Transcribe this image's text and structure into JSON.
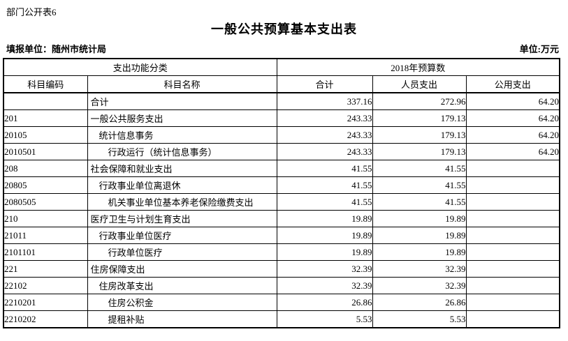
{
  "header": {
    "doc_label": "部门公开表6",
    "title": "一般公共预算基本支出表",
    "reporting_unit": "填报单位：随州市统计局",
    "unit_label": "单位:万元"
  },
  "table": {
    "group_headers": [
      "支出功能分类",
      "2018年预算数"
    ],
    "columns": [
      "科目编码",
      "科目名称",
      "合计",
      "人员支出",
      "公用支出"
    ],
    "rows": [
      {
        "code": "",
        "name": "合计",
        "indent": 0,
        "total": "337.16",
        "personnel": "272.96",
        "public": "64.20"
      },
      {
        "code": "201",
        "name": "一般公共服务支出",
        "indent": 0,
        "total": "243.33",
        "personnel": "179.13",
        "public": "64.20"
      },
      {
        "code": "20105",
        "name": "统计信息事务",
        "indent": 1,
        "total": "243.33",
        "personnel": "179.13",
        "public": "64.20"
      },
      {
        "code": "2010501",
        "name": "行政运行（统计信息事务）",
        "indent": 2,
        "total": "243.33",
        "personnel": "179.13",
        "public": "64.20"
      },
      {
        "code": "208",
        "name": "社会保障和就业支出",
        "indent": 0,
        "total": "41.55",
        "personnel": "41.55",
        "public": ""
      },
      {
        "code": "20805",
        "name": "行政事业单位离退休",
        "indent": 1,
        "total": "41.55",
        "personnel": "41.55",
        "public": ""
      },
      {
        "code": "2080505",
        "name": "机关事业单位基本养老保险缴费支出",
        "indent": 2,
        "total": "41.55",
        "personnel": "41.55",
        "public": ""
      },
      {
        "code": "210",
        "name": "医疗卫生与计划生育支出",
        "indent": 0,
        "total": "19.89",
        "personnel": "19.89",
        "public": ""
      },
      {
        "code": "21011",
        "name": "行政事业单位医疗",
        "indent": 1,
        "total": "19.89",
        "personnel": "19.89",
        "public": ""
      },
      {
        "code": "2101101",
        "name": "行政单位医疗",
        "indent": 2,
        "total": "19.89",
        "personnel": "19.89",
        "public": ""
      },
      {
        "code": "221",
        "name": "住房保障支出",
        "indent": 0,
        "total": "32.39",
        "personnel": "32.39",
        "public": ""
      },
      {
        "code": "22102",
        "name": "住房改革支出",
        "indent": 1,
        "total": "32.39",
        "personnel": "32.39",
        "public": ""
      },
      {
        "code": "2210201",
        "name": "住房公积金",
        "indent": 2,
        "total": "26.86",
        "personnel": "26.86",
        "public": ""
      },
      {
        "code": "2210202",
        "name": "提租补贴",
        "indent": 2,
        "total": "5.53",
        "personnel": "5.53",
        "public": ""
      }
    ]
  }
}
